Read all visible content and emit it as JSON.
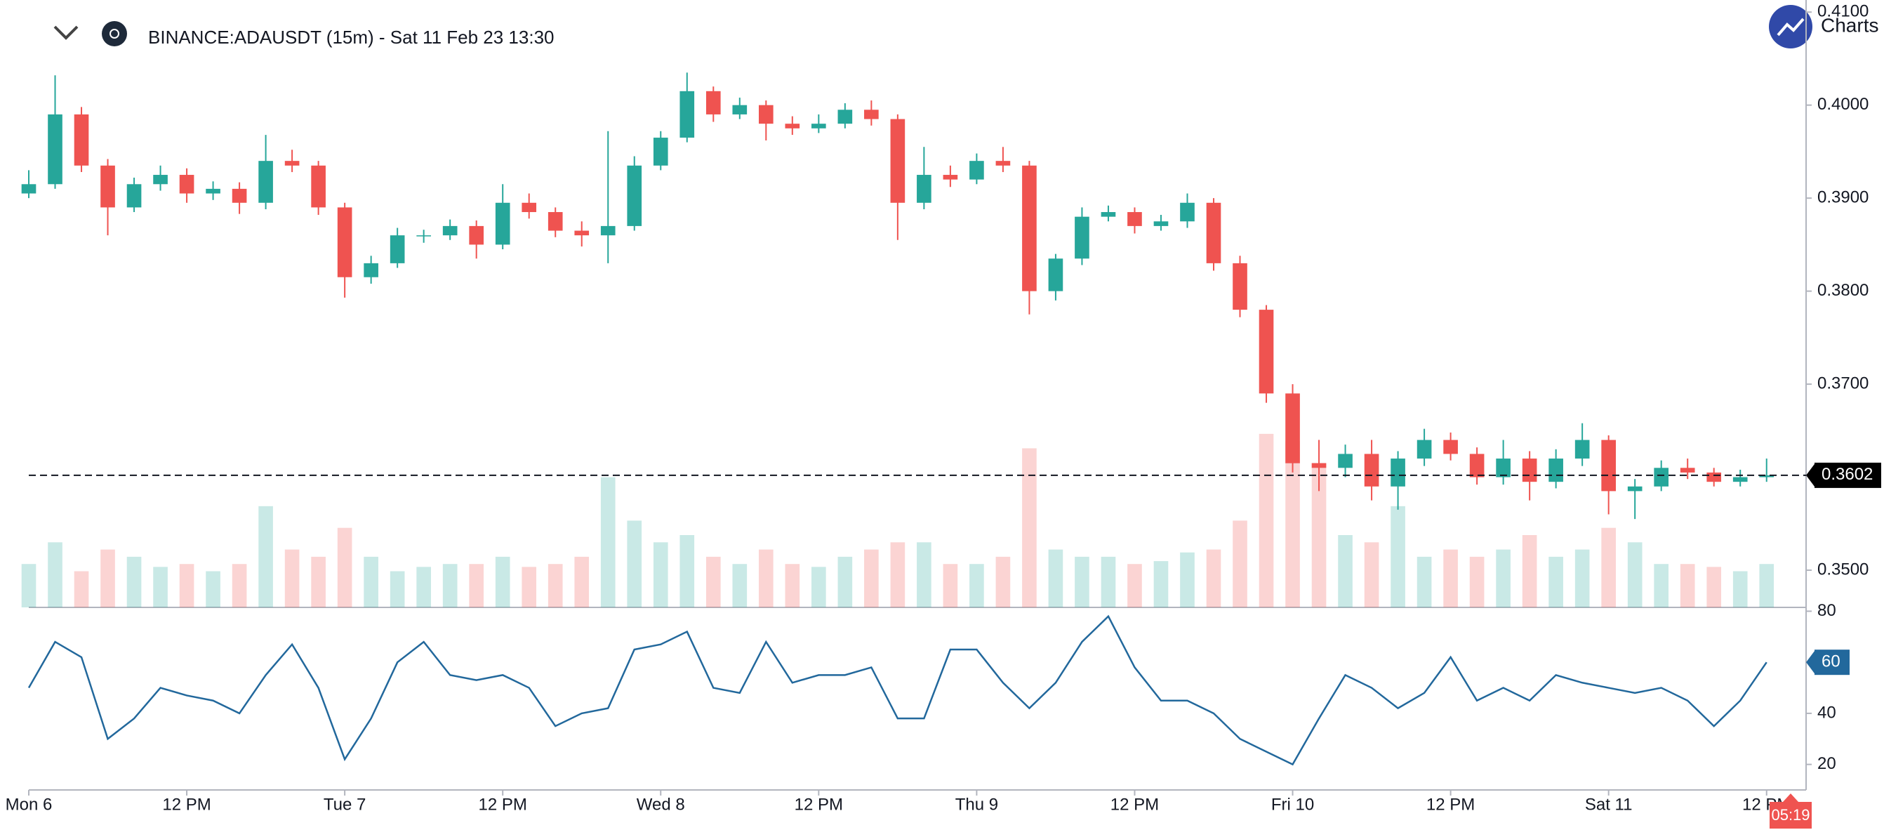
{
  "header": {
    "symbol_title": "BINANCE:ADAUSDT (15m) - Sat 11 Feb 23 13:30",
    "brand": "Charts",
    "countdown": "05:19"
  },
  "chart_data": [
    {
      "type": "candlestick",
      "x": [
        0,
        2,
        4,
        6,
        8,
        10,
        12,
        14,
        16,
        18,
        20,
        22,
        24,
        26,
        28,
        30,
        32,
        34,
        36,
        38,
        40,
        42,
        44,
        46,
        48,
        50,
        52,
        54,
        56,
        58,
        60,
        62,
        64,
        66,
        68,
        70,
        72,
        74,
        76,
        78,
        80,
        82,
        84,
        86,
        88,
        90,
        92,
        94,
        96,
        98,
        100,
        102,
        104,
        106,
        108,
        110,
        112,
        114,
        116,
        118,
        120,
        122,
        124,
        126,
        128,
        130,
        132
      ],
      "open": [
        0.3905,
        0.3915,
        0.399,
        0.3935,
        0.389,
        0.3915,
        0.3925,
        0.3905,
        0.391,
        0.3895,
        0.394,
        0.3935,
        0.389,
        0.3815,
        0.383,
        0.386,
        0.386,
        0.387,
        0.385,
        0.3895,
        0.3885,
        0.3865,
        0.386,
        0.387,
        0.3935,
        0.3965,
        0.4015,
        0.399,
        0.4,
        0.398,
        0.3975,
        0.398,
        0.3995,
        0.3985,
        0.3895,
        0.3925,
        0.392,
        0.394,
        0.3935,
        0.38,
        0.3835,
        0.388,
        0.3885,
        0.387,
        0.3875,
        0.3895,
        0.383,
        0.378,
        0.369,
        0.3615,
        0.361,
        0.3625,
        0.359,
        0.362,
        0.364,
        0.3625,
        0.36,
        0.362,
        0.3595,
        0.362,
        0.364,
        0.3585,
        0.359,
        0.361,
        0.3605,
        0.3595,
        0.36
      ],
      "high": [
        0.393,
        0.4032,
        0.3998,
        0.3942,
        0.3922,
        0.3935,
        0.3932,
        0.3918,
        0.3917,
        0.3968,
        0.3952,
        0.394,
        0.3895,
        0.3838,
        0.3868,
        0.3866,
        0.3877,
        0.3876,
        0.3915,
        0.3905,
        0.389,
        0.3875,
        0.3972,
        0.3945,
        0.3972,
        0.4035,
        0.402,
        0.4008,
        0.4005,
        0.3988,
        0.399,
        0.4002,
        0.4005,
        0.399,
        0.3955,
        0.3935,
        0.3948,
        0.3955,
        0.394,
        0.384,
        0.389,
        0.3892,
        0.389,
        0.3882,
        0.3905,
        0.39,
        0.3838,
        0.3785,
        0.37,
        0.364,
        0.3635,
        0.364,
        0.3628,
        0.3652,
        0.3648,
        0.3632,
        0.364,
        0.3628,
        0.363,
        0.3658,
        0.3645,
        0.3598,
        0.3618,
        0.362,
        0.361,
        0.3608,
        0.362
      ],
      "low": [
        0.39,
        0.391,
        0.3928,
        0.386,
        0.3885,
        0.3908,
        0.3895,
        0.3898,
        0.3883,
        0.3888,
        0.3928,
        0.3882,
        0.3793,
        0.3808,
        0.3825,
        0.3852,
        0.3855,
        0.3835,
        0.3845,
        0.3878,
        0.3858,
        0.3848,
        0.383,
        0.3865,
        0.393,
        0.396,
        0.3982,
        0.3985,
        0.3962,
        0.3968,
        0.397,
        0.3975,
        0.3978,
        0.3855,
        0.3888,
        0.3912,
        0.3915,
        0.3928,
        0.3775,
        0.379,
        0.3828,
        0.3875,
        0.3862,
        0.3865,
        0.3868,
        0.3822,
        0.3772,
        0.368,
        0.3605,
        0.3585,
        0.36,
        0.3575,
        0.3565,
        0.3612,
        0.3618,
        0.3592,
        0.3592,
        0.3575,
        0.3588,
        0.3612,
        0.356,
        0.3555,
        0.3585,
        0.3598,
        0.359,
        0.359,
        0.3595
      ],
      "close": [
        0.3915,
        0.399,
        0.3935,
        0.389,
        0.3915,
        0.3925,
        0.3905,
        0.391,
        0.3895,
        0.394,
        0.3935,
        0.389,
        0.3815,
        0.383,
        0.386,
        0.386,
        0.387,
        0.385,
        0.3895,
        0.3885,
        0.3865,
        0.386,
        0.387,
        0.3935,
        0.3965,
        0.4015,
        0.399,
        0.4,
        0.398,
        0.3975,
        0.398,
        0.3995,
        0.3985,
        0.3895,
        0.3925,
        0.392,
        0.394,
        0.3935,
        0.38,
        0.3835,
        0.388,
        0.3885,
        0.387,
        0.3875,
        0.3895,
        0.383,
        0.378,
        0.369,
        0.3615,
        0.361,
        0.3625,
        0.359,
        0.362,
        0.364,
        0.3625,
        0.36,
        0.362,
        0.3595,
        0.362,
        0.364,
        0.3585,
        0.359,
        0.361,
        0.3605,
        0.3595,
        0.36,
        0.3602
      ],
      "volume": [
        30,
        45,
        25,
        40,
        35,
        28,
        30,
        25,
        30,
        70,
        40,
        35,
        55,
        35,
        25,
        28,
        30,
        30,
        35,
        28,
        30,
        35,
        90,
        60,
        45,
        50,
        35,
        30,
        40,
        30,
        28,
        35,
        40,
        45,
        45,
        30,
        30,
        35,
        110,
        40,
        35,
        35,
        30,
        32,
        38,
        40,
        60,
        120,
        115,
        100,
        50,
        45,
        70,
        35,
        40,
        35,
        40,
        50,
        35,
        40,
        55,
        45,
        30,
        30,
        28,
        25,
        30
      ],
      "volume_ylim": [
        0,
        420
      ],
      "up_color": "#26a69a",
      "down_color": "#ef5350",
      "ylim": [
        0.346,
        0.4113
      ],
      "yticks": [
        {
          "value": 0.35,
          "label": "0.3500"
        },
        {
          "value": 0.37,
          "label": "0.3700"
        },
        {
          "value": 0.38,
          "label": "0.3800"
        },
        {
          "value": 0.39,
          "label": "0.3900"
        },
        {
          "value": 0.4,
          "label": "0.4000"
        },
        {
          "value": 0.41,
          "label": "0.4100"
        }
      ],
      "price_line": true
    },
    {
      "type": "line",
      "values": [
        50,
        68,
        62,
        30,
        38,
        50,
        47,
        45,
        40,
        55,
        67,
        50,
        22,
        38,
        60,
        68,
        55,
        53,
        55,
        50,
        35,
        40,
        42,
        65,
        67,
        72,
        50,
        48,
        68,
        52,
        55,
        55,
        58,
        38,
        38,
        65,
        65,
        52,
        42,
        52,
        68,
        78,
        58,
        45,
        45,
        40,
        30,
        25,
        20,
        38,
        55,
        50,
        42,
        48,
        62,
        45,
        50,
        45,
        55,
        52,
        50,
        48,
        50,
        45,
        35,
        45,
        60
      ],
      "color": "#22689c",
      "ylim": [
        10,
        81.5
      ],
      "yticks": [
        20,
        40,
        60,
        80
      ],
      "xlim": [
        0,
        135
      ],
      "xticks": [
        {
          "value": 0,
          "label": "Mon 6"
        },
        {
          "value": 12,
          "label": "12 PM"
        },
        {
          "value": 24,
          "label": "Tue 7"
        },
        {
          "value": 36,
          "label": "12 PM"
        },
        {
          "value": 48,
          "label": "Wed 8"
        },
        {
          "value": 60,
          "label": "12 PM"
        },
        {
          "value": 72,
          "label": "Thu 9"
        },
        {
          "value": 84,
          "label": "12 PM"
        },
        {
          "value": 96,
          "label": "Fri 10"
        },
        {
          "value": 108,
          "label": "12 PM"
        },
        {
          "value": 120,
          "label": "Sat 11"
        },
        {
          "value": 132,
          "label": "12 PM"
        }
      ]
    }
  ]
}
